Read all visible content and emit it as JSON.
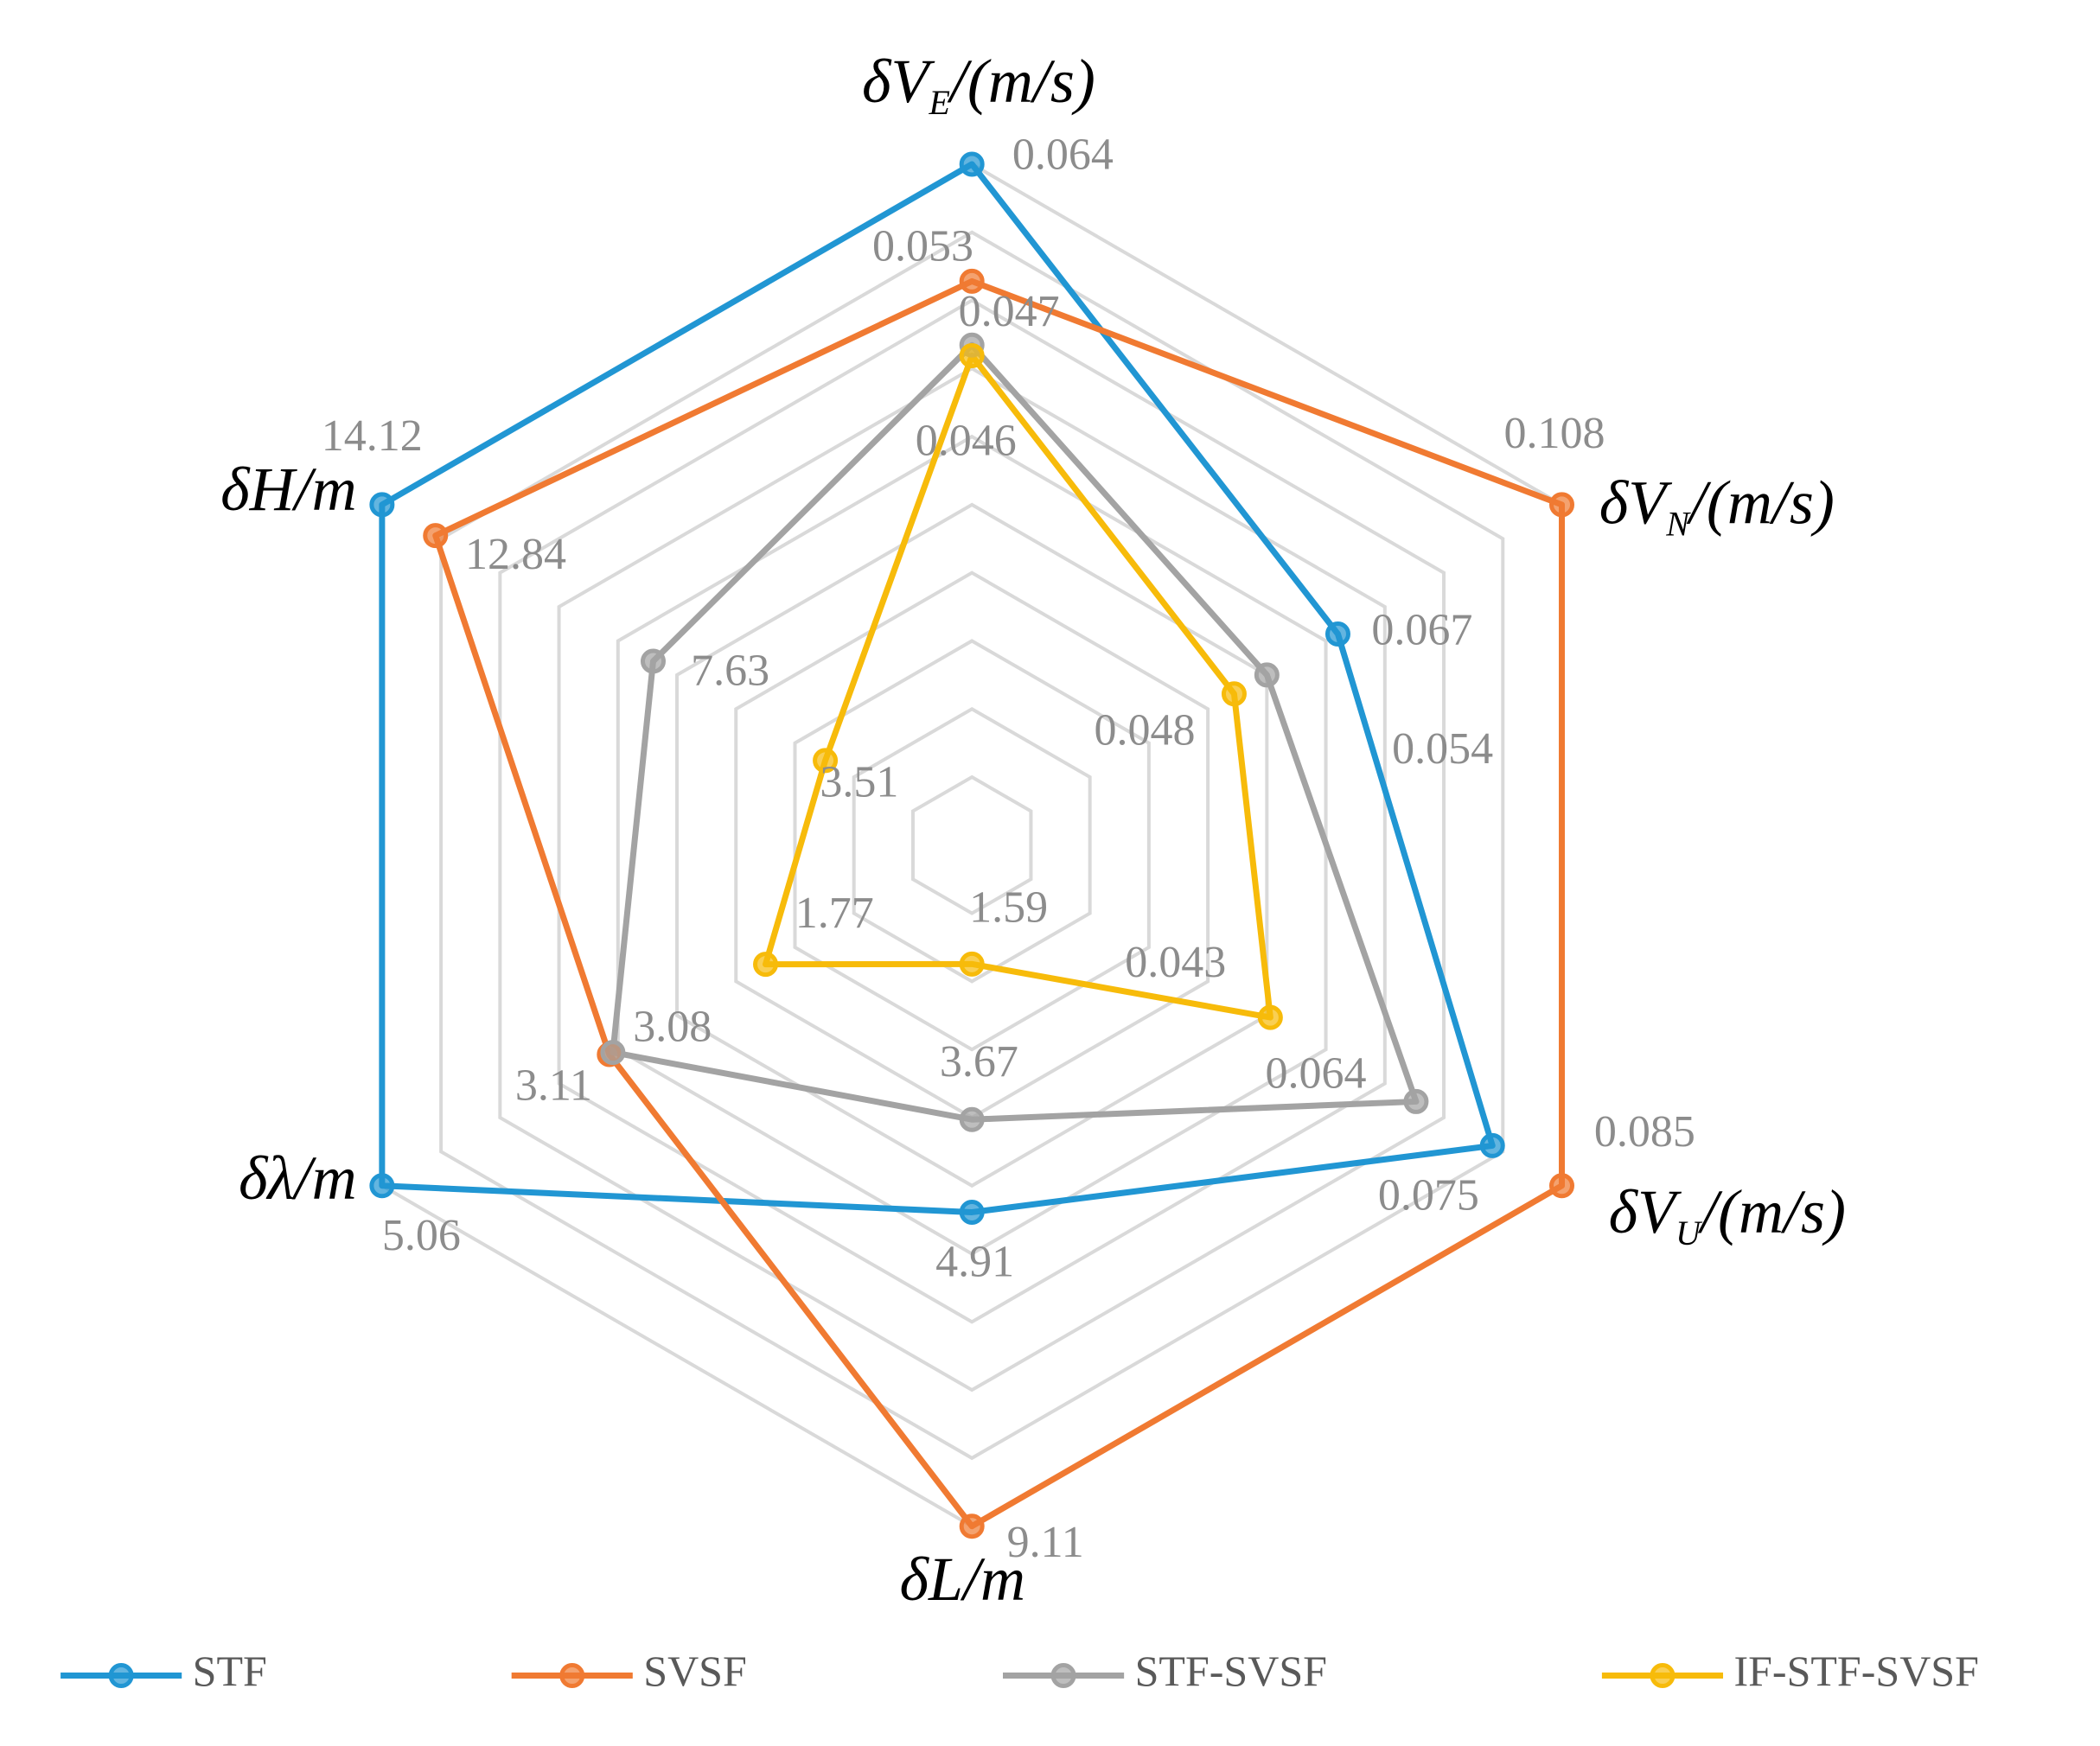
{
  "chart_data": {
    "type": "radar",
    "axes": [
      {
        "label": "δV",
        "subscript": "E",
        "unit": "/(m/s)"
      },
      {
        "label": "δV",
        "subscript": "N",
        "unit": "/(m/s)"
      },
      {
        "label": "δV",
        "subscript": "U",
        "unit": "/(m/s)"
      },
      {
        "label": "δL",
        "unit": "/m"
      },
      {
        "label": "δλ",
        "unit": "/m"
      },
      {
        "label": "δH",
        "unit": "/m"
      }
    ],
    "series": [
      {
        "name": "STF",
        "color": "#2196d3",
        "values": [
          0.064,
          0.067,
          0.075,
          4.91,
          5.06,
          14.12
        ]
      },
      {
        "name": "SVSF",
        "color": "#f07a32",
        "values": [
          0.053,
          0.108,
          0.085,
          9.11,
          3.11,
          12.84
        ]
      },
      {
        "name": "STF-SVSF",
        "color": "#a3a3a3",
        "values": [
          0.047,
          0.054,
          0.064,
          3.67,
          3.08,
          7.63
        ]
      },
      {
        "name": "IF-STF-SVSF",
        "color": "#f7bb0a",
        "values": [
          0.046,
          0.048,
          0.043,
          1.59,
          1.77,
          3.51
        ]
      }
    ],
    "grid_rings": 10,
    "legend": "bottom"
  }
}
